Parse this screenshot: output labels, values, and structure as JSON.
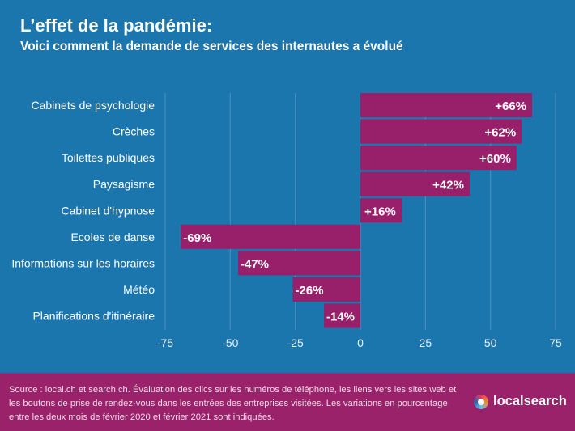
{
  "header": {
    "title": "L’effet de la pandémie:",
    "subtitle": "Voici comment la demande de services des internautes a évolué"
  },
  "chart_data": {
    "type": "bar",
    "orientation": "horizontal",
    "categories": [
      "Cabinets de psychologie",
      "Crèches",
      "Toilettes publiques",
      "Paysagisme",
      "Cabinet d'hypnose",
      "Ecoles de danse",
      "Informations sur les horaires",
      "Météo",
      "Planifications d'itinéraire"
    ],
    "values": [
      66,
      62,
      60,
      42,
      16,
      -69,
      -47,
      -26,
      -14
    ],
    "data_labels": [
      "+66%",
      "+62%",
      "+60%",
      "+42%",
      "+16%",
      "-69%",
      "-47%",
      "-26%",
      "-14%"
    ],
    "xlim": [
      -75,
      75
    ],
    "xticks": [
      "-75",
      "-50",
      "-25",
      "0",
      "25",
      "50",
      "75"
    ],
    "grid": true,
    "bar_color": "#98206a"
  },
  "footer": {
    "source": "Source : local.ch et search.ch. Évaluation des clics sur les numéros de téléphone, les liens vers les sites web et les boutons de prise de rendez-vous dans les entrées des entreprises visitées. Les variations en pourcentage entre les deux mois de février 2020 et février 2021 sont indiquées.",
    "logo_text": "localsearch"
  }
}
